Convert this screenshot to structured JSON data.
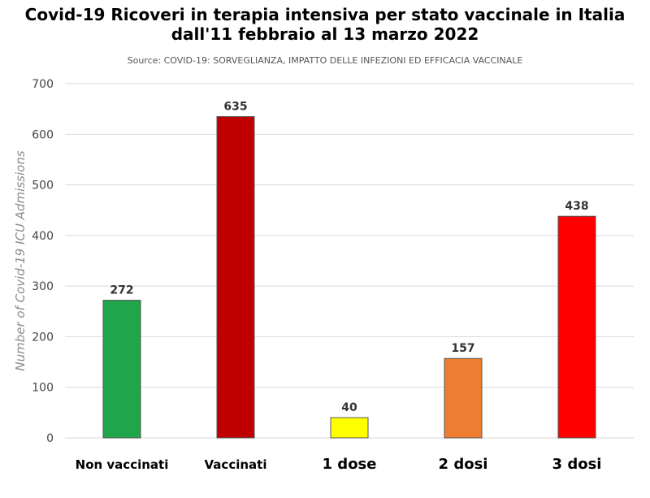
{
  "title_line1": "Covid-19 Ricoveri in terapia intensiva per stato vaccinale in Italia",
  "title_line2": "dall'11 febbraio al 13 marzo 2022",
  "source": "Source: COVID-19: SORVEGLIANZA, IMPATTO DELLE INFEZIONI ED EFFICACIA VACCINALE",
  "chart_data": {
    "type": "bar",
    "categories": [
      "Non vaccinati",
      "Vaccinati",
      "1 dose",
      "2 dosi",
      "3 dosi"
    ],
    "values": [
      272,
      635,
      40,
      157,
      438
    ],
    "colors": [
      "#1fa64a",
      "#c00000",
      "#ffff00",
      "#ed7d31",
      "#ff0000"
    ],
    "ylabel": "Number of Covid-19 ICU Admissions",
    "ylim": [
      0,
      700
    ],
    "yticks": [
      0,
      100,
      200,
      300,
      400,
      500,
      600,
      700
    ],
    "grid": true
  }
}
